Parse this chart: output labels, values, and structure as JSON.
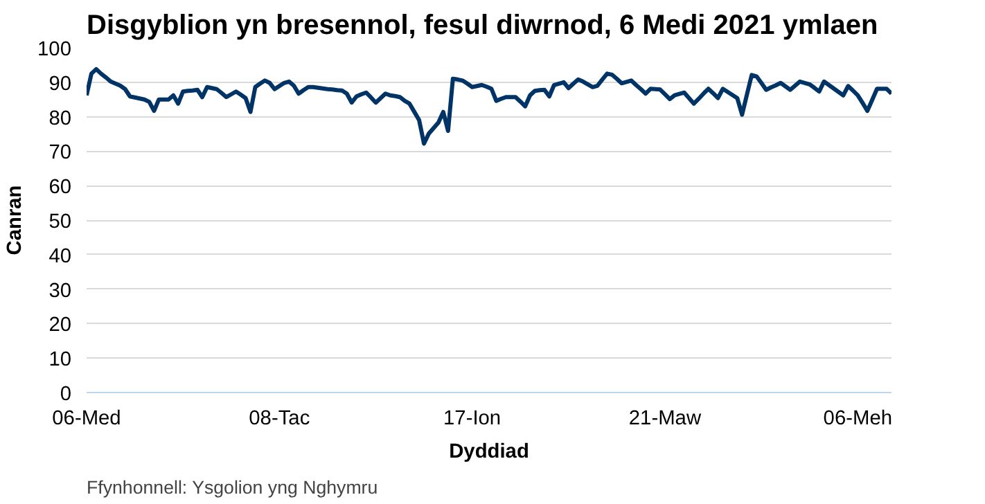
{
  "chart_data": {
    "type": "line",
    "title": "Disgyblion yn bresennol, fesul diwrnod, 6 Medi 2021 ymlaen",
    "xlabel": "Dyddiad",
    "ylabel": "Canran",
    "annotations": [
      "Ffynhonnell: Ysgolion yng Nghymru"
    ],
    "categories": [
      "06-Med",
      null,
      null,
      null,
      null,
      null,
      null,
      null,
      null,
      null,
      null,
      null,
      null,
      null,
      null,
      null,
      null,
      null,
      null,
      null,
      null,
      null,
      null,
      null,
      null,
      null,
      null,
      null,
      null,
      null,
      null,
      null,
      null,
      null,
      null,
      null,
      null,
      null,
      null,
      null,
      "08-Tac",
      null,
      null,
      null,
      null,
      null,
      null,
      null,
      null,
      null,
      null,
      null,
      null,
      null,
      null,
      null,
      null,
      null,
      null,
      null,
      null,
      null,
      null,
      null,
      null,
      null,
      null,
      null,
      null,
      null,
      null,
      null,
      null,
      null,
      null,
      null,
      null,
      null,
      null,
      null,
      "17-Ion",
      null,
      null,
      null,
      null,
      null,
      null,
      null,
      null,
      null,
      null,
      null,
      null,
      null,
      null,
      null,
      null,
      null,
      null,
      null,
      null,
      null,
      null,
      null,
      null,
      null,
      null,
      null,
      null,
      null,
      null,
      null,
      null,
      null,
      null,
      null,
      null,
      null,
      null,
      null,
      "21-Maw",
      null,
      null,
      null,
      null,
      null,
      null,
      null,
      null,
      null,
      null,
      null,
      null,
      null,
      null,
      null,
      null,
      null,
      null,
      null,
      null,
      null,
      null,
      null,
      null,
      null,
      null,
      null,
      null,
      null,
      null,
      null,
      null,
      null,
      null,
      null,
      null,
      null,
      null,
      null,
      "06-Meh",
      null,
      null,
      null,
      null,
      null,
      null,
      null
    ],
    "series": [
      {
        "color": "#003366",
        "values": [
          86.2,
          92.5,
          93.8,
          92.5,
          91.4,
          90.2,
          89.6,
          89,
          88,
          85.9,
          85.6,
          85.3,
          85,
          84.3,
          81.7,
          85,
          85,
          85,
          86.2,
          83.8,
          87.3,
          87.5,
          87.6,
          87.8,
          85.7,
          88.6,
          88.3,
          88,
          86.9,
          85.7,
          86.5,
          87.3,
          86.4,
          85.4,
          81.4,
          88.6,
          89.6,
          90.5,
          89.8,
          88,
          88.9,
          89.8,
          90.2,
          89,
          86.7,
          87.7,
          88.6,
          88.6,
          88.4,
          88.2,
          88,
          87.9,
          87.7,
          87.6,
          86.7,
          84.1,
          85.9,
          86.5,
          87,
          85.6,
          84.1,
          85.4,
          86.7,
          86.2,
          86,
          85.7,
          84.6,
          83.8,
          81.4,
          79,
          72.2,
          75.1,
          76.7,
          78.3,
          81.4,
          75.9,
          91,
          90.8,
          90.5,
          89.6,
          88.6,
          88.9,
          89.2,
          88.7,
          88.1,
          84.6,
          85.2,
          85.7,
          85.7,
          85.7,
          84.4,
          83,
          86.2,
          87.5,
          87.7,
          87.8,
          85.9,
          89.2,
          89.6,
          90,
          88.3,
          89.6,
          90.8,
          90.2,
          89.4,
          88.6,
          89,
          90.8,
          92.5,
          92.2,
          91,
          89.7,
          90.1,
          90.5,
          89.2,
          88,
          86.7,
          88.1,
          88,
          87.9,
          86.5,
          85.1,
          86.2,
          86.6,
          87,
          85.4,
          83.8,
          85.2,
          86.7,
          88.1,
          86.8,
          85.4,
          88.1,
          87.2,
          86.3,
          85.4,
          80.6,
          86.4,
          92.1,
          91.7,
          89.8,
          87.8,
          88.5,
          89.1,
          89.8,
          88.8,
          87.8,
          89,
          90.2,
          89.8,
          89.4,
          88.4,
          87.3,
          90.2,
          89.2,
          88.2,
          87.2,
          86.2,
          88.9,
          87.6,
          86.2,
          84,
          81.7,
          84.9,
          88.1,
          88.1,
          88.1,
          86.7
        ]
      }
    ],
    "ylim": [
      0,
      100
    ],
    "yticks": [
      0,
      10,
      20,
      30,
      40,
      50,
      60,
      70,
      80,
      90,
      100
    ],
    "grid": "y",
    "marker": "none",
    "line_style": "solid"
  }
}
